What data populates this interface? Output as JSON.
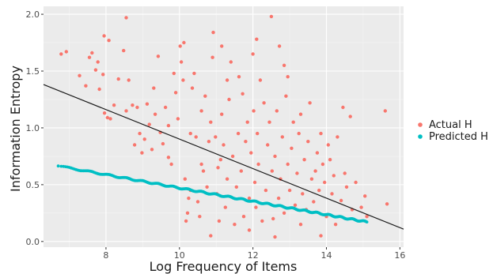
{
  "chart_data": {
    "type": "scatter",
    "xlabel": "Log Frequency of Items",
    "ylabel": "Information Entropy",
    "xlim": [
      6.3,
      16.1
    ],
    "ylim": [
      -0.05,
      2.07
    ],
    "x_ticks": [
      8,
      10,
      12,
      14,
      16
    ],
    "x_tick_labels": [
      "8",
      "10",
      "12",
      "14",
      "16"
    ],
    "y_ticks": [
      0.0,
      0.5,
      1.0,
      1.5,
      2.0
    ],
    "y_tick_labels": [
      "0.0",
      "0.5",
      "1.0",
      "1.5",
      "2.0"
    ],
    "grid": true,
    "legend_position": "right",
    "colors": {
      "panel_background": "#ebebeb",
      "grid_major": "#ffffff",
      "actual": "#f8766d",
      "predicted": "#00bfc4",
      "regression_line": "#1a1a1a"
    },
    "series": [
      {
        "name": "Actual H",
        "color": "#f8766d",
        "points": [
          [
            6.78,
            1.65
          ],
          [
            6.92,
            1.67
          ],
          [
            7.28,
            1.46
          ],
          [
            7.45,
            1.37
          ],
          [
            7.55,
            1.62
          ],
          [
            7.62,
            1.66
          ],
          [
            7.72,
            1.51
          ],
          [
            7.78,
            1.58
          ],
          [
            7.82,
            1.34
          ],
          [
            7.92,
            1.47
          ],
          [
            7.96,
            1.13
          ],
          [
            8.04,
            1.09
          ],
          [
            8.12,
            1.08
          ],
          [
            7.95,
            1.81
          ],
          [
            8.08,
            1.77
          ],
          [
            8.22,
            1.2
          ],
          [
            8.34,
            1.43
          ],
          [
            8.48,
            1.68
          ],
          [
            8.55,
            1.97
          ],
          [
            8.62,
            1.42
          ],
          [
            8.72,
            1.2
          ],
          [
            8.78,
            0.85
          ],
          [
            8.85,
            1.18
          ],
          [
            8.92,
            0.95
          ],
          [
            8.98,
            0.78
          ],
          [
            9.05,
            0.9
          ],
          [
            9.12,
            1.21
          ],
          [
            9.18,
            1.03
          ],
          [
            9.25,
            0.81
          ],
          [
            9.34,
            1.12
          ],
          [
            9.42,
            1.63
          ],
          [
            9.48,
            0.96
          ],
          [
            9.55,
            0.86
          ],
          [
            9.62,
            1.18
          ],
          [
            9.7,
            0.74
          ],
          [
            9.78,
            0.68
          ],
          [
            9.85,
            1.48
          ],
          [
            9.9,
            1.31
          ],
          [
            9.96,
            1.08
          ],
          [
            10.02,
            1.72
          ],
          [
            10.05,
            1.58
          ],
          [
            10.1,
            1.42
          ],
          [
            10.12,
            1.75
          ],
          [
            10.15,
            0.55
          ],
          [
            10.18,
            0.18
          ],
          [
            10.22,
            0.25
          ],
          [
            10.25,
            0.38
          ],
          [
            10.3,
            0.95
          ],
          [
            10.35,
            1.35
          ],
          [
            10.4,
            1.48
          ],
          [
            10.45,
            0.92
          ],
          [
            10.5,
            0.35
          ],
          [
            10.55,
            0.22
          ],
          [
            10.6,
            1.15
          ],
          [
            10.65,
            0.62
          ],
          [
            10.7,
            1.28
          ],
          [
            10.75,
            0.48
          ],
          [
            10.8,
            0.88
          ],
          [
            10.85,
            1.05
          ],
          [
            10.9,
            1.62
          ],
          [
            10.92,
            1.84
          ],
          [
            10.98,
            0.92
          ],
          [
            11.02,
            0.42
          ],
          [
            11.05,
            0.65
          ],
          [
            11.08,
            0.18
          ],
          [
            11.12,
            0.72
          ],
          [
            11.15,
            1.12
          ],
          [
            11.2,
            0.85
          ],
          [
            11.25,
            0.3
          ],
          [
            11.3,
            0.55
          ],
          [
            11.35,
            1.25
          ],
          [
            11.4,
            1.58
          ],
          [
            11.45,
            0.75
          ],
          [
            11.5,
            0.15
          ],
          [
            11.55,
            0.48
          ],
          [
            11.6,
            0.95
          ],
          [
            11.62,
            1.45
          ],
          [
            11.68,
            0.62
          ],
          [
            11.72,
            1.3
          ],
          [
            11.75,
            0.22
          ],
          [
            11.8,
            0.88
          ],
          [
            11.85,
            1.05
          ],
          [
            11.9,
            0.38
          ],
          [
            11.95,
            0.78
          ],
          [
            12.0,
            1.65
          ],
          [
            12.02,
            1.15
          ],
          [
            12.05,
            0.52
          ],
          [
            12.08,
            0.3
          ],
          [
            12.12,
            0.95
          ],
          [
            12.15,
            0.68
          ],
          [
            12.2,
            1.42
          ],
          [
            12.25,
            0.18
          ],
          [
            12.3,
            1.22
          ],
          [
            12.35,
            0.45
          ],
          [
            12.4,
            0.85
          ],
          [
            12.45,
            1.05
          ],
          [
            12.5,
            1.98
          ],
          [
            12.52,
            0.62
          ],
          [
            12.55,
            0.2
          ],
          [
            12.6,
            0.75
          ],
          [
            12.65,
            1.15
          ],
          [
            12.7,
            0.38
          ],
          [
            12.72,
            1.72
          ],
          [
            12.75,
            0.55
          ],
          [
            12.8,
            0.92
          ],
          [
            12.85,
            0.25
          ],
          [
            12.9,
            1.28
          ],
          [
            12.95,
            0.68
          ],
          [
            13.0,
            0.45
          ],
          [
            13.05,
            0.82
          ],
          [
            13.1,
            1.05
          ],
          [
            13.15,
            0.32
          ],
          [
            13.2,
            0.6
          ],
          [
            13.25,
            0.95
          ],
          [
            13.3,
            1.12
          ],
          [
            13.35,
            0.42
          ],
          [
            13.4,
            0.72
          ],
          [
            13.45,
            0.28
          ],
          [
            13.5,
            0.88
          ],
          [
            13.55,
            1.22
          ],
          [
            13.6,
            0.55
          ],
          [
            13.65,
            0.35
          ],
          [
            13.7,
            0.62
          ],
          [
            13.75,
            0.78
          ],
          [
            13.8,
            0.45
          ],
          [
            13.85,
            0.95
          ],
          [
            13.9,
            0.68
          ],
          [
            13.95,
            0.52
          ],
          [
            14.0,
            0.22
          ],
          [
            14.05,
            0.85
          ],
          [
            14.1,
            0.72
          ],
          [
            14.15,
            0.42
          ],
          [
            14.2,
            0.58
          ],
          [
            14.3,
            0.92
          ],
          [
            14.4,
            0.36
          ],
          [
            14.5,
            0.6
          ],
          [
            14.55,
            0.48
          ],
          [
            14.65,
            1.1
          ],
          [
            14.7,
            0.28
          ],
          [
            14.8,
            0.52
          ],
          [
            14.95,
            0.3
          ],
          [
            15.05,
            0.4
          ],
          [
            15.1,
            0.22
          ],
          [
            15.6,
            1.15
          ],
          [
            15.65,
            0.33
          ],
          [
            14.45,
            1.18
          ],
          [
            13.85,
            0.05
          ],
          [
            12.85,
            1.55
          ],
          [
            11.3,
            1.42
          ],
          [
            10.85,
            0.05
          ],
          [
            12.1,
            1.78
          ],
          [
            9.3,
            1.35
          ],
          [
            8.55,
            1.15
          ],
          [
            10.6,
            0.68
          ],
          [
            11.9,
            0.1
          ],
          [
            12.6,
            0.04
          ],
          [
            13.3,
            0.15
          ],
          [
            14.25,
            0.15
          ],
          [
            10.3,
            0.45
          ],
          [
            11.15,
            1.72
          ],
          [
            9.7,
            1.02
          ],
          [
            12.95,
            1.45
          ]
        ]
      },
      {
        "name": "Predicted H",
        "color": "#00bfc4",
        "x_range": [
          6.7,
          15.1
        ],
        "fit": {
          "intercept": 1.0578,
          "slope": -0.0587
        }
      }
    ],
    "regression_line": {
      "intercept": 2.2,
      "slope": -0.1299,
      "x_range": [
        6.3,
        16.1
      ],
      "color": "#1a1a1a"
    }
  }
}
